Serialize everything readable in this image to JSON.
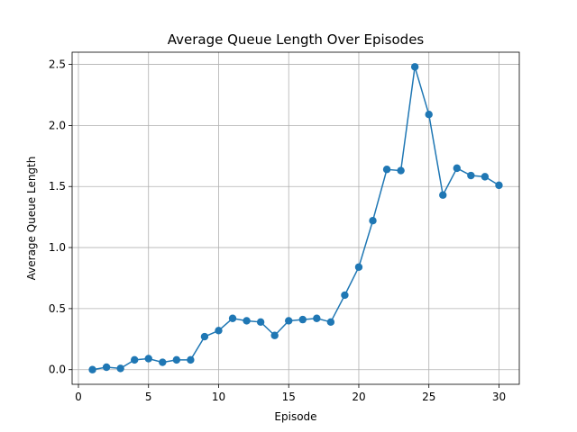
{
  "chart_data": {
    "type": "line",
    "title": "Average Queue Length Over Episodes",
    "xlabel": "Episode",
    "ylabel": "Average Queue Length",
    "xlim": [
      -0.45,
      31.45
    ],
    "ylim": [
      -0.12,
      2.6
    ],
    "xticks": [
      0,
      5,
      10,
      15,
      20,
      25,
      30
    ],
    "xtick_labels": [
      "0",
      "5",
      "10",
      "15",
      "20",
      "25",
      "30"
    ],
    "yticks": [
      0.0,
      0.5,
      1.0,
      1.5,
      2.0,
      2.5
    ],
    "ytick_labels": [
      "0.0",
      "0.5",
      "1.0",
      "1.5",
      "2.0",
      "2.5"
    ],
    "grid": true,
    "color": "#1f77b4",
    "marker": "circle",
    "x": [
      1,
      2,
      3,
      4,
      5,
      6,
      7,
      8,
      9,
      10,
      11,
      12,
      13,
      14,
      15,
      16,
      17,
      18,
      19,
      20,
      21,
      22,
      23,
      24,
      25,
      26,
      27,
      28,
      29,
      30
    ],
    "y": [
      0.0,
      0.02,
      0.01,
      0.08,
      0.09,
      0.06,
      0.08,
      0.08,
      0.27,
      0.32,
      0.42,
      0.4,
      0.39,
      0.28,
      0.4,
      0.41,
      0.42,
      0.39,
      0.61,
      0.84,
      1.22,
      1.64,
      1.63,
      2.48,
      2.09,
      1.43,
      1.65,
      1.59,
      1.58,
      1.51
    ]
  }
}
